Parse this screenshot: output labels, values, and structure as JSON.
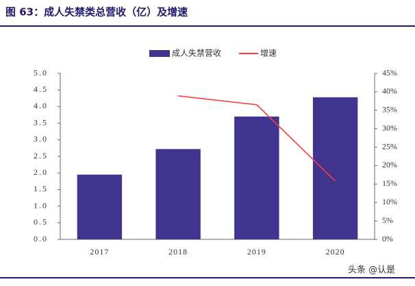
{
  "chart_data": {
    "type": "bar",
    "title": "图 63：成人失禁类总营收（亿）及增速",
    "categories": [
      "2017",
      "2018",
      "2019",
      "2020"
    ],
    "series": [
      {
        "name": "成人失禁营收",
        "color": "#3f3590",
        "values": [
          1.95,
          2.72,
          3.7,
          4.28
        ]
      },
      {
        "name": "增速",
        "color": "#ff3b3b",
        "type": "line",
        "axis": "y2",
        "values": [
          null,
          38.9,
          36.5,
          15.8
        ]
      }
    ],
    "ylim": [
      0,
      5
    ],
    "yticks": [
      {
        "value": 0,
        "label": "0.0"
      },
      {
        "value": 0.5,
        "label": "0.5"
      },
      {
        "value": 1,
        "label": "1.0"
      },
      {
        "value": 1.5,
        "label": "1.5"
      },
      {
        "value": 2,
        "label": "2.0"
      },
      {
        "value": 2.5,
        "label": "2.5"
      },
      {
        "value": 3,
        "label": "3.0"
      },
      {
        "value": 3.5,
        "label": "3.5"
      },
      {
        "value": 4,
        "label": "4.0"
      },
      {
        "value": 4.5,
        "label": "4.5"
      },
      {
        "value": 5,
        "label": "5.0"
      }
    ],
    "y2lim": [
      0,
      45
    ],
    "y2ticks": [
      {
        "value": 0,
        "label": "0%"
      },
      {
        "value": 5,
        "label": "5%"
      },
      {
        "value": 10,
        "label": "10%"
      },
      {
        "value": 15,
        "label": "15%"
      },
      {
        "value": 20,
        "label": "20%"
      },
      {
        "value": 25,
        "label": "25%"
      },
      {
        "value": 30,
        "label": "30%"
      },
      {
        "value": 35,
        "label": "35%"
      },
      {
        "value": 40,
        "label": "40%"
      },
      {
        "value": 45,
        "label": "45%"
      }
    ],
    "grid": false,
    "watermark": "头条 @认是"
  }
}
